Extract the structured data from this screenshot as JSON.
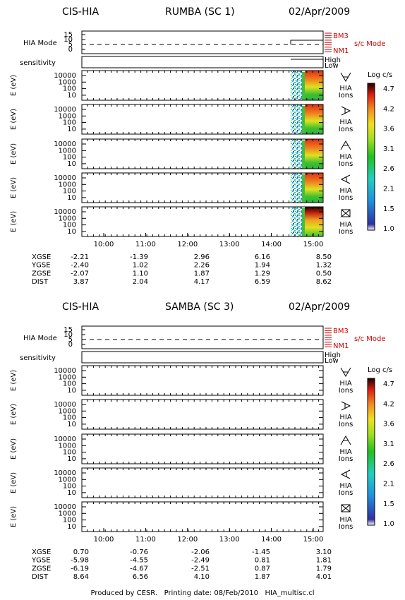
{
  "plots": [
    {
      "header": {
        "instrument": "CIS-HIA",
        "spacecraft": "RUMBA (SC 1)",
        "date": "02/Apr/2009"
      },
      "mode_panel": {
        "label": "HIA Mode",
        "ticks": [
          "15",
          "10",
          "5",
          "0"
        ],
        "top_label": "BM3",
        "bottom_label": "NM1",
        "sc_mode": "s/c Mode"
      },
      "sensitivity": {
        "label": "sensitivity",
        "high": "High",
        "low": "Low"
      },
      "energy_axis": {
        "label": "E (eV)",
        "ticks": [
          "10000",
          "1000",
          "100",
          "10"
        ]
      },
      "species": {
        "line1": "HIA",
        "line2": "Ions"
      },
      "colorbar": {
        "label": "Log c/s",
        "ticks": [
          "4.7",
          "4.2",
          "3.6",
          "3.1",
          "2.6",
          "2.1",
          "1.5",
          "1.0"
        ]
      },
      "times": [
        "10:00",
        "11:00",
        "12:00",
        "13:00",
        "14:00",
        "15:00"
      ],
      "ephemeris": [
        {
          "name": "XGSE",
          "values": [
            "-2.21",
            "-1.39",
            "2.96",
            "6.16",
            "8.50"
          ]
        },
        {
          "name": "YGSE",
          "values": [
            "-2.40",
            "1.02",
            "2.26",
            "1.94",
            "1.32"
          ]
        },
        {
          "name": "ZGSE",
          "values": [
            "-2.07",
            "1.10",
            "1.87",
            "1.29",
            "0.50"
          ]
        },
        {
          "name": "DIST",
          "values": [
            "3.87",
            "2.04",
            "4.17",
            "6.59",
            "8.62"
          ]
        }
      ]
    },
    {
      "header": {
        "instrument": "CIS-HIA",
        "spacecraft": "SAMBA (SC 3)",
        "date": "02/Apr/2009"
      },
      "mode_panel": {
        "label": "HIA Mode",
        "ticks": [
          "15",
          "10",
          "5",
          "0"
        ],
        "top_label": "BM3",
        "bottom_label": "NM1",
        "sc_mode": "s/c Mode"
      },
      "sensitivity": {
        "label": "sensitivity",
        "high": "High",
        "low": "Low"
      },
      "energy_axis": {
        "label": "E (eV)",
        "ticks": [
          "10000",
          "1000",
          "100",
          "10"
        ]
      },
      "species": {
        "line1": "HIA",
        "line2": "Ions"
      },
      "colorbar": {
        "label": "Log c/s",
        "ticks": [
          "4.7",
          "4.2",
          "3.6",
          "3.1",
          "2.6",
          "2.1",
          "1.5",
          "1.0"
        ]
      },
      "times": [
        "10:00",
        "11:00",
        "12:00",
        "13:00",
        "14:00",
        "15:00"
      ],
      "ephemeris": [
        {
          "name": "XGSE",
          "values": [
            "0.70",
            "-0.76",
            "-2.06",
            "-1.45",
            "3.10"
          ]
        },
        {
          "name": "YGSE",
          "values": [
            "-5.98",
            "-4.55",
            "-2.49",
            "0.81",
            "1.81"
          ]
        },
        {
          "name": "ZGSE",
          "values": [
            "-6.19",
            "-4.67",
            "-2.51",
            "0.87",
            "1.79"
          ]
        },
        {
          "name": "DIST",
          "values": [
            "8.64",
            "6.56",
            "4.10",
            "1.87",
            "4.01"
          ]
        }
      ]
    }
  ],
  "footer": "Produced by CESR.   Printing date: 08/Feb/2010   HIA_multisc.cl"
}
